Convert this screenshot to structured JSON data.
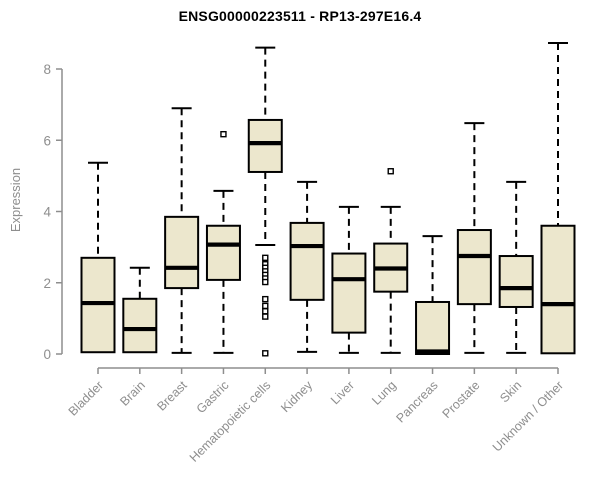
{
  "chart_data": {
    "type": "boxplot",
    "title": "ENSG00000223511 - RP13-297E16.4",
    "xlabel": "",
    "ylabel": "Expression",
    "ylim": [
      0,
      8.8
    ],
    "yticks": [
      0,
      2,
      4,
      6,
      8
    ],
    "grid": false,
    "legend": null,
    "categories": [
      "Bladder",
      "Brain",
      "Breast",
      "Gastric",
      "Hematopoietic cells",
      "Kidney",
      "Liver",
      "Lung",
      "Pancreas",
      "Prostate",
      "Skin",
      "Unknown / Other"
    ],
    "boxes": [
      {
        "category": "Bladder",
        "whislo": 0.05,
        "q1": 0.05,
        "med": 1.43,
        "q3": 2.7,
        "whishi": 5.37,
        "outliers": []
      },
      {
        "category": "Brain",
        "whislo": 0.05,
        "q1": 0.05,
        "med": 0.7,
        "q3": 1.55,
        "whishi": 2.42,
        "outliers": []
      },
      {
        "category": "Breast",
        "whislo": 0.03,
        "q1": 1.85,
        "med": 2.42,
        "q3": 3.85,
        "whishi": 6.9,
        "outliers": []
      },
      {
        "category": "Gastric",
        "whislo": 0.03,
        "q1": 2.08,
        "med": 3.07,
        "q3": 3.6,
        "whishi": 4.58,
        "outliers": [
          6.17
        ]
      },
      {
        "category": "Hematopoietic cells",
        "whislo": 3.06,
        "q1": 5.11,
        "med": 5.92,
        "q3": 6.57,
        "whishi": 8.6,
        "outliers": [
          2.7,
          2.52,
          2.42,
          2.32,
          2.22,
          2.12,
          2.02,
          1.54,
          1.35,
          1.2,
          1.05,
          0.02
        ]
      },
      {
        "category": "Kidney",
        "whislo": 0.06,
        "q1": 1.52,
        "med": 3.03,
        "q3": 3.68,
        "whishi": 4.83,
        "outliers": []
      },
      {
        "category": "Liver",
        "whislo": 0.03,
        "q1": 0.6,
        "med": 2.1,
        "q3": 2.82,
        "whishi": 4.13,
        "outliers": []
      },
      {
        "category": "Lung",
        "whislo": 0.03,
        "q1": 1.75,
        "med": 2.4,
        "q3": 3.1,
        "whishi": 4.13,
        "outliers": [
          5.13
        ]
      },
      {
        "category": "Pancreas",
        "whislo": 0.0,
        "q1": 0.0,
        "med": 0.07,
        "q3": 1.46,
        "whishi": 3.31,
        "outliers": []
      },
      {
        "category": "Prostate",
        "whislo": 0.03,
        "q1": 1.4,
        "med": 2.75,
        "q3": 3.48,
        "whishi": 6.48,
        "outliers": []
      },
      {
        "category": "Skin",
        "whislo": 0.03,
        "q1": 1.32,
        "med": 1.85,
        "q3": 2.75,
        "whishi": 4.83,
        "outliers": []
      },
      {
        "category": "Unknown / Other",
        "whislo": 0.02,
        "q1": 0.02,
        "med": 1.4,
        "q3": 3.6,
        "whishi": 8.73,
        "outliers": []
      }
    ],
    "colors": {
      "box_fill": "#ece7cd",
      "box_border": "#000000",
      "median": "#000000",
      "whisker": "#000000",
      "outlier_fill": "#ffffff",
      "axis": "#8e8e8e",
      "tick_label": "#8e8e8e",
      "title": "#000000"
    }
  }
}
